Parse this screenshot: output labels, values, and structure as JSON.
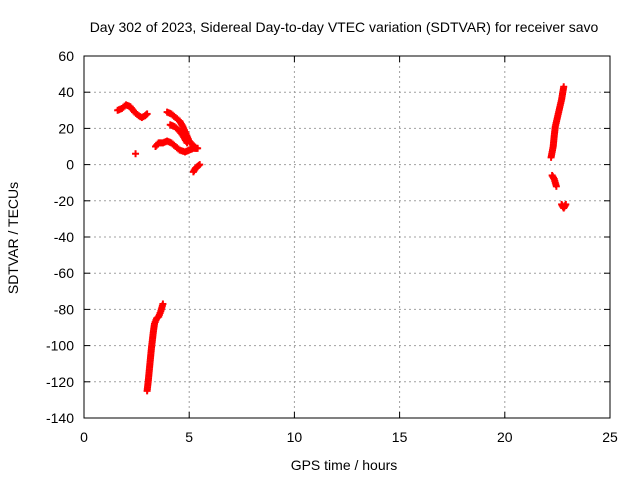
{
  "chart_data": {
    "type": "scatter",
    "title": "Day 302 of 2023, Sidereal Day-to-day VTEC variation (SDTVAR) for receiver savo",
    "xlabel": "GPS time / hours",
    "ylabel": "SDTVAR / TECUs",
    "xlim": [
      0,
      25
    ],
    "ylim": [
      -140,
      60
    ],
    "xticks": [
      0,
      5,
      10,
      15,
      20,
      25
    ],
    "yticks": [
      -140,
      -120,
      -100,
      -80,
      -60,
      -40,
      -20,
      0,
      20,
      40,
      60
    ],
    "grid": true,
    "marker": "plus",
    "color": "#ff0000",
    "series": [
      {
        "segments": [
          [
            [
              1.6,
              30
            ],
            [
              1.8,
              31
            ],
            [
              2.0,
              33
            ],
            [
              2.2,
              32
            ],
            [
              2.4,
              29
            ],
            [
              2.6,
              27
            ],
            [
              2.75,
              26
            ],
            [
              2.9,
              27
            ],
            [
              3.0,
              28
            ]
          ],
          [
            [
              2.45,
              6
            ]
          ],
          [
            [
              3.4,
              10
            ],
            [
              3.55,
              12
            ],
            [
              3.75,
              12
            ],
            [
              3.95,
              13
            ],
            [
              4.15,
              12
            ],
            [
              4.35,
              10
            ],
            [
              4.55,
              8
            ],
            [
              4.8,
              7
            ],
            [
              5.0,
              8
            ],
            [
              5.2,
              9
            ],
            [
              5.4,
              9
            ]
          ],
          [
            [
              3.95,
              29
            ],
            [
              4.15,
              28
            ],
            [
              4.35,
              26
            ],
            [
              4.55,
              24
            ],
            [
              4.7,
              21
            ],
            [
              4.85,
              17
            ],
            [
              5.0,
              13
            ],
            [
              5.15,
              11
            ],
            [
              5.35,
              9
            ]
          ],
          [
            [
              4.1,
              22
            ],
            [
              4.3,
              21
            ],
            [
              4.5,
              19
            ],
            [
              4.7,
              16
            ],
            [
              4.9,
              12
            ]
          ],
          [
            [
              5.2,
              -4
            ],
            [
              5.3,
              -2
            ],
            [
              5.4,
              -1
            ],
            [
              5.5,
              0
            ]
          ],
          [
            [
              3.0,
              -125
            ],
            [
              3.05,
              -120
            ],
            [
              3.1,
              -114
            ],
            [
              3.15,
              -108
            ],
            [
              3.2,
              -102
            ],
            [
              3.25,
              -97
            ],
            [
              3.3,
              -92
            ],
            [
              3.35,
              -88
            ],
            [
              3.45,
              -85
            ],
            [
              3.55,
              -84
            ],
            [
              3.65,
              -81
            ],
            [
              3.75,
              -77
            ]
          ],
          [
            [
              22.2,
              4
            ],
            [
              22.3,
              10
            ],
            [
              22.35,
              16
            ],
            [
              22.4,
              21
            ],
            [
              22.5,
              26
            ],
            [
              22.6,
              31
            ],
            [
              22.7,
              36
            ],
            [
              22.8,
              43
            ]
          ],
          [
            [
              22.25,
              -6
            ],
            [
              22.35,
              -8
            ],
            [
              22.45,
              -12
            ]
          ],
          [
            [
              22.7,
              -22
            ],
            [
              22.8,
              -24
            ],
            [
              22.9,
              -22
            ]
          ]
        ]
      }
    ]
  }
}
